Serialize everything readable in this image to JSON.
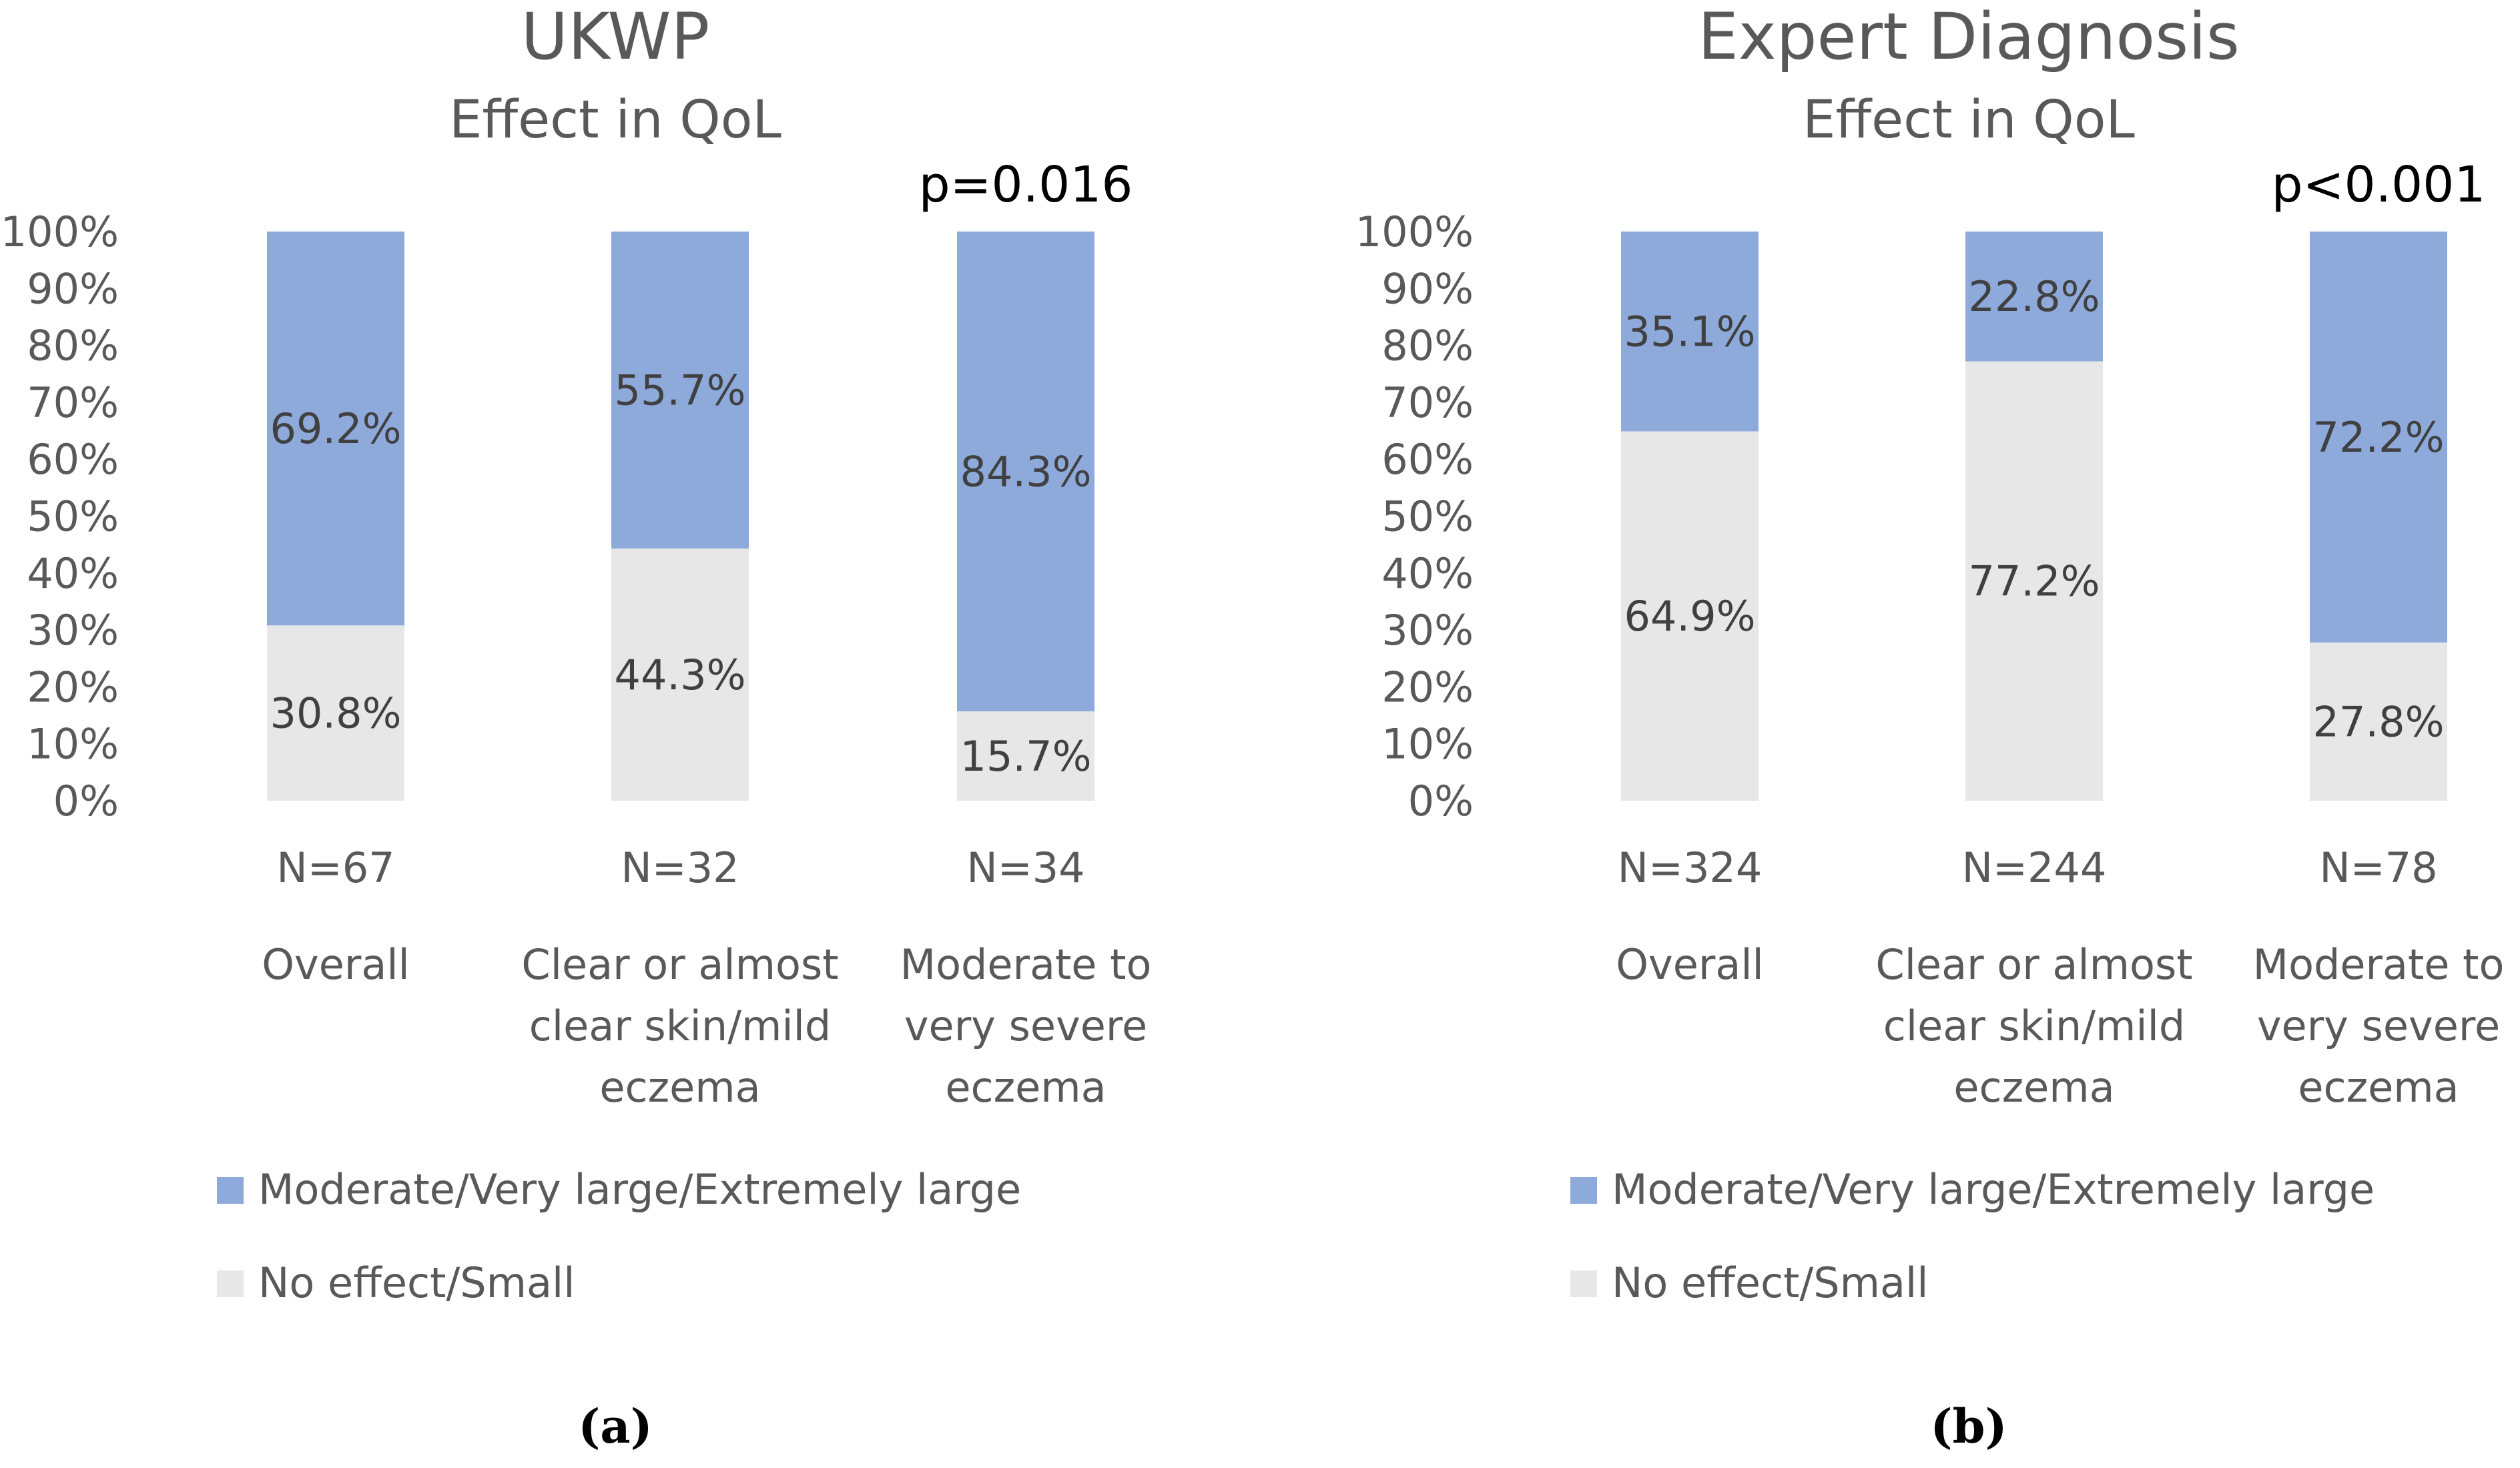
{
  "colors": {
    "moderate": "#8eaadb",
    "small": "#e7e7e7",
    "text": "#595959"
  },
  "chart_data": [
    {
      "type": "bar",
      "stacked": true,
      "panel": "(a)",
      "title": "UKWP",
      "subtitle": "Effect in QoL",
      "p_value": "p=0.016",
      "ylim": [
        0,
        100
      ],
      "y_ticks": [
        "0%",
        "10%",
        "20%",
        "30%",
        "40%",
        "50%",
        "60%",
        "70%",
        "80%",
        "90%",
        "100%"
      ],
      "categories": [
        {
          "n": "N=67",
          "lines": [
            "Overall"
          ]
        },
        {
          "n": "N=32",
          "lines": [
            "Clear or almost",
            "clear skin/mild",
            "eczema"
          ]
        },
        {
          "n": "N=34",
          "lines": [
            "Moderate to",
            "very severe",
            "eczema"
          ]
        }
      ],
      "series": [
        {
          "name": "No effect/Small",
          "values": [
            30.8,
            44.3,
            15.7
          ],
          "labels": [
            "30.8%",
            "44.3%",
            "15.7%"
          ]
        },
        {
          "name": "Moderate/Very large/Extremely large",
          "values": [
            69.2,
            55.7,
            84.3
          ],
          "labels": [
            "69.2%",
            "55.7%",
            "84.3%"
          ]
        }
      ],
      "legend": [
        "Moderate/Very large/Extremely large",
        "No effect/Small"
      ],
      "grid": false,
      "legend_position": "bottom"
    },
    {
      "type": "bar",
      "stacked": true,
      "panel": "(b)",
      "title": "Expert Diagnosis",
      "subtitle": "Effect in QoL",
      "p_value": "p<0.001",
      "ylim": [
        0,
        100
      ],
      "y_ticks": [
        "0%",
        "10%",
        "20%",
        "30%",
        "40%",
        "50%",
        "60%",
        "70%",
        "80%",
        "90%",
        "100%"
      ],
      "categories": [
        {
          "n": "N=324",
          "lines": [
            "Overall"
          ]
        },
        {
          "n": "N=244",
          "lines": [
            "Clear or almost",
            "clear skin/mild",
            "eczema"
          ]
        },
        {
          "n": "N=78",
          "lines": [
            "Moderate to",
            "very severe",
            "eczema"
          ]
        }
      ],
      "series": [
        {
          "name": "No effect/Small",
          "values": [
            64.9,
            77.2,
            27.8
          ],
          "labels": [
            "64.9%",
            "77.2%",
            "27.8%"
          ]
        },
        {
          "name": "Moderate/Very large/Extremely large",
          "values": [
            35.1,
            22.8,
            72.2
          ],
          "labels": [
            "35.1%",
            "22.8%",
            "72.2%"
          ]
        }
      ],
      "legend": [
        "Moderate/Very large/Extremely large",
        "No effect/Small"
      ],
      "grid": false,
      "legend_position": "bottom"
    }
  ]
}
